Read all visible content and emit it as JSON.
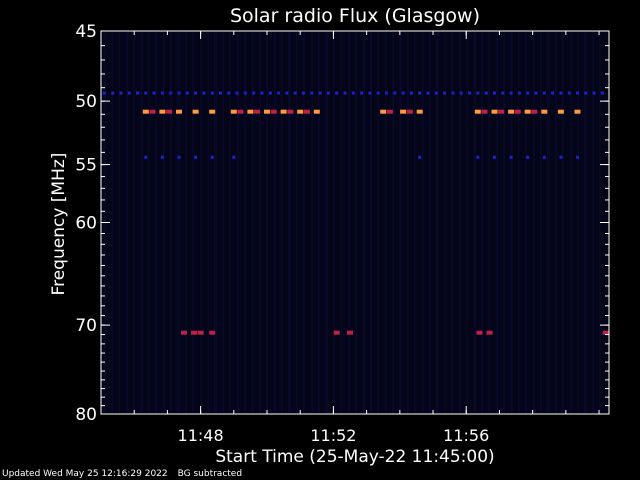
{
  "chart_data": {
    "type": "heatmap",
    "title": "Solar radio Flux (Glasgow)",
    "xlabel": "Start Time (25-May-22 11:45:00)",
    "ylabel": "Frequency [MHz]",
    "x_range_minutes": [
      0,
      15.3
    ],
    "x_ticks": [
      {
        "label": "11:48",
        "minute": 3
      },
      {
        "label": "11:52",
        "minute": 7
      },
      {
        "label": "11:56",
        "minute": 11
      }
    ],
    "ylim": [
      45,
      80
    ],
    "y_ticks": [
      45,
      50,
      55,
      60,
      70,
      80
    ],
    "y_scale": "log",
    "y_inverted": true,
    "colors": {
      "background": "#000000",
      "plot_bg": "#05051a",
      "axis": "#ffffff",
      "weak": "#2020d0",
      "medium": "#c0204a",
      "strong": "#ff9a40"
    },
    "rows": [
      {
        "freq": 49.4,
        "level": "weak",
        "times": [
          0.1,
          0.35,
          0.6,
          0.85,
          1.1,
          1.35,
          1.6,
          1.85,
          2.1,
          2.35,
          2.6,
          2.85,
          3.1,
          3.35,
          3.6,
          3.85,
          4.1,
          4.35,
          4.6,
          4.85,
          5.1,
          5.35,
          5.6,
          5.85,
          6.1,
          6.35,
          6.6,
          6.85,
          7.1,
          7.35,
          7.6,
          7.85,
          8.1,
          8.35,
          8.6,
          8.85,
          9.1,
          9.35,
          9.6,
          9.85,
          10.1,
          10.35,
          10.6,
          10.85,
          11.1,
          11.35,
          11.6,
          11.85,
          12.1,
          12.35,
          12.6,
          12.85,
          13.1,
          13.35,
          13.6,
          13.85,
          14.1,
          14.35,
          14.6,
          14.85,
          15.1
        ]
      },
      {
        "freq": 50.8,
        "level": "strong",
        "times": [
          1.35,
          1.85,
          2.35,
          2.85,
          3.35,
          4.0,
          4.5,
          5.0,
          5.5,
          6.0,
          6.5,
          8.5,
          9.1,
          9.6,
          11.35,
          11.85,
          12.35,
          12.85,
          13.35,
          13.85,
          14.35
        ]
      },
      {
        "freq": 50.8,
        "level": "medium",
        "times": [
          1.55,
          2.05,
          4.2,
          4.7,
          5.2,
          5.7,
          6.2,
          8.7,
          9.3,
          11.55,
          12.05,
          12.55,
          13.05
        ]
      },
      {
        "freq": 54.4,
        "level": "weak",
        "times": [
          1.35,
          1.85,
          2.35,
          2.85,
          3.35,
          4.0,
          9.6,
          11.35,
          11.85,
          12.35,
          12.85,
          13.35,
          13.85,
          14.35
        ]
      },
      {
        "freq": 70.8,
        "level": "medium",
        "times": [
          2.5,
          2.8,
          3.0,
          3.35,
          7.1,
          7.5,
          11.4,
          11.7,
          15.2
        ]
      }
    ]
  },
  "footer": {
    "updated": "Updated Wed May 25 12:16:29 2022",
    "note": "BG subtracted"
  }
}
